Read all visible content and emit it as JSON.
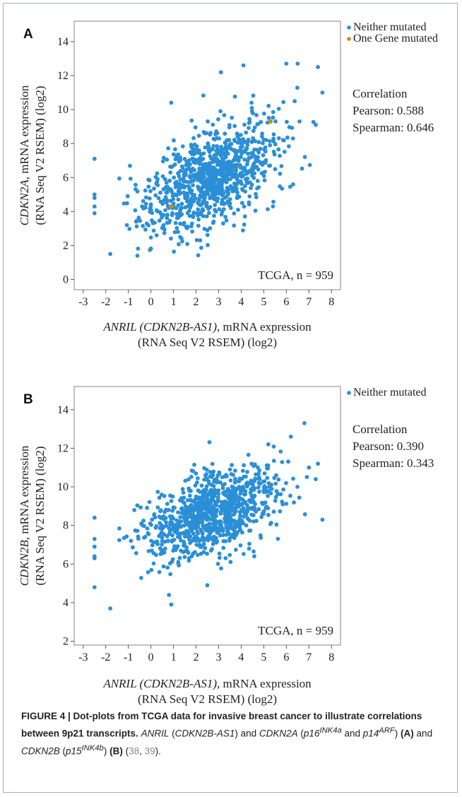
{
  "chart_data": [
    {
      "type": "scatter",
      "panel_label": "A",
      "title": "",
      "xlabel_italic": "ANRIL (CDKN2B-AS1)",
      "xlabel_rest": ", mRNA expression",
      "xlabel_line2": "(RNA Seq V2 RSEM) (log2)",
      "ylabel_italic": "CDKN2A",
      "ylabel_rest": ", mRNA expression",
      "ylabel_line2": "(RNA Seq V2 RSEM) (log2)",
      "xlim": [
        -3.4,
        8.4
      ],
      "ylim": [
        -0.6,
        15.2
      ],
      "x_ticks": [
        -3,
        -2,
        -1,
        0,
        1,
        2,
        3,
        4,
        5,
        6,
        7,
        8
      ],
      "y_ticks": [
        0,
        2,
        4,
        6,
        8,
        10,
        12,
        14
      ],
      "grid": false,
      "legend_position": "top-right, outside",
      "legend": [
        {
          "label": "Neither mutated",
          "color": "#2b8fd6"
        },
        {
          "label": "One Gene mutated",
          "color": "#c78a1a"
        }
      ],
      "correlation": {
        "heading": "Correlation",
        "pearson": "Pearson: 0.588",
        "spearman": "Spearman: 0.646"
      },
      "annotation": "TCGA, n = 959",
      "n": 959,
      "trend": {
        "intercept": 4.4,
        "slope": 0.62,
        "noise": 1.35
      },
      "highlight_points": [
        {
          "x": -2.5,
          "y": 7.1
        },
        {
          "x": -2.5,
          "y": 5.0
        },
        {
          "x": -2.5,
          "y": 4.8
        },
        {
          "x": -2.5,
          "y": 4.3
        },
        {
          "x": -2.5,
          "y": 3.9
        },
        {
          "x": -1.8,
          "y": 1.5
        },
        {
          "x": -0.6,
          "y": 1.4
        },
        {
          "x": 0.9,
          "y": 10.4
        },
        {
          "x": 3.1,
          "y": 12.2
        },
        {
          "x": 4.1,
          "y": 12.6
        },
        {
          "x": 6.0,
          "y": 12.7
        },
        {
          "x": 6.5,
          "y": 12.7
        },
        {
          "x": 7.4,
          "y": 12.5
        },
        {
          "x": 7.6,
          "y": 11.0
        },
        {
          "x": 7.3,
          "y": 9.1
        },
        {
          "x": 6.3,
          "y": 5.6
        },
        {
          "x": 2.5,
          "y": 2.9
        },
        {
          "x": 3.2,
          "y": 3.3
        },
        {
          "x": 1.2,
          "y": 2.8
        }
      ],
      "mutated_points": [
        {
          "x": 5.3,
          "y": 9.3
        },
        {
          "x": 0.9,
          "y": 4.3
        }
      ],
      "seed": 17
    },
    {
      "type": "scatter",
      "panel_label": "B",
      "title": "",
      "xlabel_italic": "ANRIL (CDKN2B-AS1)",
      "xlabel_rest": ", mRNA expression",
      "xlabel_line2": "(RNA Seq V2 RSEM) (log2)",
      "ylabel_italic": "CDKN2B",
      "ylabel_rest": ", mRNA expression",
      "ylabel_line2": "(RNA Seq V2 RSEM) (log2)",
      "xlim": [
        -3.4,
        8.4
      ],
      "ylim": [
        1.8,
        15.2
      ],
      "x_ticks": [
        -3,
        -2,
        -1,
        0,
        1,
        2,
        3,
        4,
        5,
        6,
        7,
        8
      ],
      "y_ticks": [
        2,
        4,
        6,
        8,
        10,
        12,
        14
      ],
      "grid": false,
      "legend_position": "top-right, outside",
      "legend": [
        {
          "label": "Neither mutated",
          "color": "#2b8fd6"
        }
      ],
      "correlation": {
        "heading": "Correlation",
        "pearson": "Pearson: 0.390",
        "spearman": "Spearman: 0.343"
      },
      "annotation": "TCGA, n = 959",
      "n": 959,
      "trend": {
        "intercept": 7.6,
        "slope": 0.38,
        "noise": 1.05
      },
      "highlight_points": [
        {
          "x": -2.5,
          "y": 8.4
        },
        {
          "x": -2.5,
          "y": 7.3
        },
        {
          "x": -2.5,
          "y": 6.9
        },
        {
          "x": -2.5,
          "y": 6.4
        },
        {
          "x": -2.5,
          "y": 6.3
        },
        {
          "x": -2.5,
          "y": 4.8
        },
        {
          "x": -1.8,
          "y": 3.7
        },
        {
          "x": 0.8,
          "y": 4.4
        },
        {
          "x": 0.9,
          "y": 3.9
        },
        {
          "x": 2.5,
          "y": 4.9
        },
        {
          "x": 6.8,
          "y": 13.3
        },
        {
          "x": 6.2,
          "y": 12.6
        },
        {
          "x": 7.4,
          "y": 11.2
        },
        {
          "x": 7.0,
          "y": 11.0
        },
        {
          "x": 7.3,
          "y": 10.4
        },
        {
          "x": 7.6,
          "y": 8.3
        },
        {
          "x": 5.2,
          "y": 12.2
        }
      ],
      "mutated_points": [],
      "seed": 41
    }
  ],
  "caption": {
    "fig_label": "FIGURE 4 | Dot-plots from TCGA data for invasive breast cancer to illustrate correlations between 9p21 transcripts.",
    "anril": "ANRIL",
    "open_paren": " (",
    "cdkn2b_as1": "CDKN2B-AS1",
    "close_and": ") and ",
    "cdkn2a": "CDKN2A",
    "p16": "p16",
    "p16_sup": "INK4a",
    "and": " and ",
    "p14": "p14",
    "p14_sup": "ARF",
    "panel_a": "(A)",
    "and_2": " and ",
    "cdkn2b": "CDKN2B",
    "p15": "p15",
    "p15_sup": "INK4b",
    "panel_b": "(B)",
    "ref1": "38",
    "ref2": "39"
  }
}
